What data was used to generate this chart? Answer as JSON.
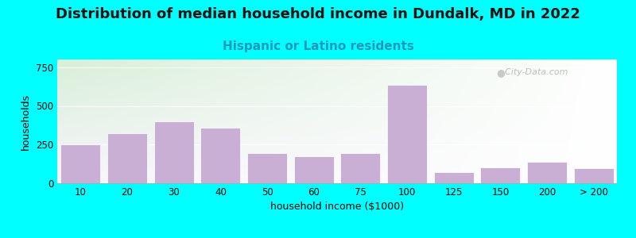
{
  "title": "Distribution of median household income in Dundalk, MD in 2022",
  "subtitle": "Hispanic or Latino residents",
  "xlabel": "household income ($1000)",
  "ylabel": "households",
  "background_color": "#00FFFF",
  "plot_bg_top_left": "#d8efd8",
  "plot_bg_bottom_right": "#f8f5fc",
  "bar_color": "#c9afd4",
  "bar_edge_color": "#ffffff",
  "ylim": [
    0,
    800
  ],
  "yticks": [
    0,
    250,
    500,
    750
  ],
  "categories": [
    "10",
    "20",
    "30",
    "40",
    "50",
    "60",
    "75",
    "100",
    "125",
    "150",
    "200",
    "> 200"
  ],
  "values": [
    252,
    325,
    400,
    360,
    195,
    175,
    195,
    635,
    70,
    105,
    140,
    100
  ],
  "title_fontsize": 13,
  "subtitle_fontsize": 11,
  "subtitle_color": "#2299bb",
  "axis_label_fontsize": 9,
  "tick_fontsize": 8.5,
  "watermark_text": "  City-Data.com"
}
